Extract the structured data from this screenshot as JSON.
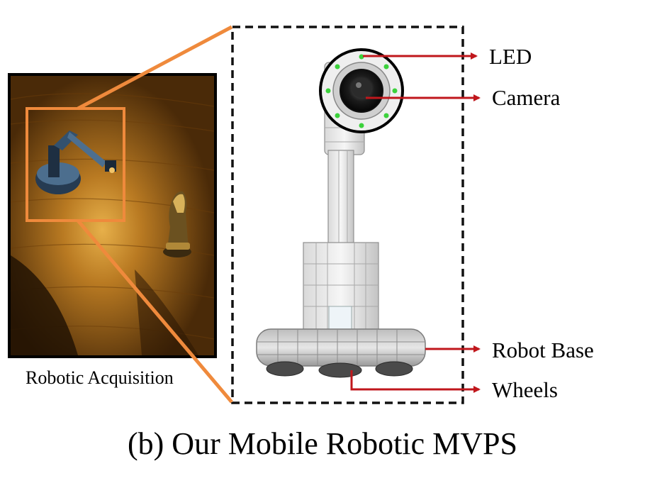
{
  "labels": {
    "led": "LED",
    "camera": "Camera",
    "robot_base": "Robot Base",
    "wheels": "Wheels",
    "acquisition": "Robotic Acquisition"
  },
  "caption": "(b) Our Mobile Robotic MVPS",
  "colors": {
    "zoom_outline": "#ef8a3c",
    "pointer_arrow": "#c0171c",
    "dashed_frame": "#111111",
    "led_dot": "#3cd23c",
    "wood": "#8a5410"
  },
  "icons": [
    "robot-arm-icon",
    "chess-knight-icon",
    "camera-lens-icon",
    "led-ring-icon",
    "wheel-icon"
  ]
}
